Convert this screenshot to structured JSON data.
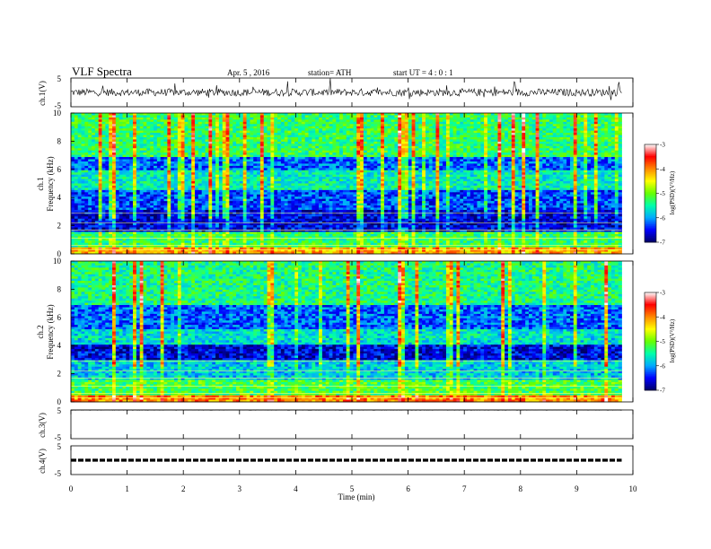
{
  "header": {
    "title": "VLF  Spectra",
    "date": "Apr. 5  , 2016",
    "station": "station= ATH",
    "start_ut": "start  UT  =   4  : 0  : 1"
  },
  "chart_data": [
    {
      "type": "line",
      "panel": "ch1-waveform",
      "ylabel": "ch.1(V)",
      "ylim": [
        -5,
        5
      ],
      "yticks": [
        "5",
        "-5"
      ],
      "approx_level": 0,
      "color": "#000000"
    },
    {
      "type": "heatmap",
      "panel": "ch1-spectrogram",
      "ylabel_lines": [
        "ch.1",
        "Frequency  (kHz)"
      ],
      "ylim": [
        0,
        10
      ],
      "yticks": [
        "0",
        "2",
        "4",
        "6",
        "8",
        "10"
      ],
      "colorbar": {
        "label": "log(PSD)(V²/Hz)",
        "range": [
          -7,
          -3
        ],
        "ticks": [
          "-3",
          "-4",
          "-5",
          "-6",
          "-7"
        ],
        "colormap": [
          "#000066",
          "#0000ff",
          "#00aaff",
          "#00ffaa",
          "#66ff00",
          "#ffff00",
          "#ff8800",
          "#ff0000",
          "#ffffff"
        ]
      },
      "bands": [
        {
          "freq_range": [
            0,
            0.5
          ],
          "logpsd": -4.2
        },
        {
          "freq_range": [
            0.5,
            1.5
          ],
          "logpsd": -5.3
        },
        {
          "freq_range": [
            1.5,
            3.2
          ],
          "logpsd": -6.6
        },
        {
          "freq_range": [
            3.2,
            4.5
          ],
          "logpsd": -6.3
        },
        {
          "freq_range": [
            4.5,
            6.0
          ],
          "logpsd": -5.6
        },
        {
          "freq_range": [
            6.0,
            6.8
          ],
          "logpsd": -6.2
        },
        {
          "freq_range": [
            6.8,
            10.0
          ],
          "logpsd": -5.3
        }
      ]
    },
    {
      "type": "heatmap",
      "panel": "ch2-spectrogram",
      "ylabel_lines": [
        "ch.2",
        "Frequency  (kHz)"
      ],
      "ylim": [
        0,
        10
      ],
      "yticks": [
        "0",
        "2",
        "4",
        "6",
        "8",
        "10"
      ],
      "colorbar": {
        "label": "log(PSD)(V²/Hz)",
        "range": [
          -7,
          -3
        ],
        "ticks": [
          "-3",
          "-4",
          "-5",
          "-6",
          "-7"
        ],
        "colormap": [
          "#000066",
          "#0000ff",
          "#00aaff",
          "#00ffaa",
          "#66ff00",
          "#ffff00",
          "#ff8800",
          "#ff0000",
          "#ffffff"
        ]
      },
      "bands": [
        {
          "freq_range": [
            0,
            0.5
          ],
          "logpsd": -4.0
        },
        {
          "freq_range": [
            0.5,
            1.5
          ],
          "logpsd": -5.2
        },
        {
          "freq_range": [
            1.5,
            3.0
          ],
          "logpsd": -5.8
        },
        {
          "freq_range": [
            3.0,
            4.0
          ],
          "logpsd": -6.6
        },
        {
          "freq_range": [
            4.0,
            5.2
          ],
          "logpsd": -5.7
        },
        {
          "freq_range": [
            5.2,
            6.8
          ],
          "logpsd": -6.2
        },
        {
          "freq_range": [
            6.8,
            10.0
          ],
          "logpsd": -5.4
        }
      ]
    },
    {
      "type": "line",
      "panel": "ch3-waveform",
      "ylabel": "ch.3(V)",
      "ylim": [
        -5,
        5
      ],
      "yticks": [
        "5",
        "-5"
      ],
      "approx_level": 5,
      "color": "#000000"
    },
    {
      "type": "line",
      "panel": "ch4-waveform",
      "ylabel": "ch.4(V)",
      "ylim": [
        -5,
        5
      ],
      "yticks": [
        "5",
        "-5"
      ],
      "approx_level": 0,
      "color": "#000000"
    }
  ],
  "x_axis": {
    "label": "Time  (min)",
    "range": [
      0,
      10
    ],
    "ticks": [
      "0",
      "1",
      "2",
      "3",
      "4",
      "5",
      "6",
      "7",
      "8",
      "9",
      "10"
    ],
    "data_end": 9.8
  }
}
